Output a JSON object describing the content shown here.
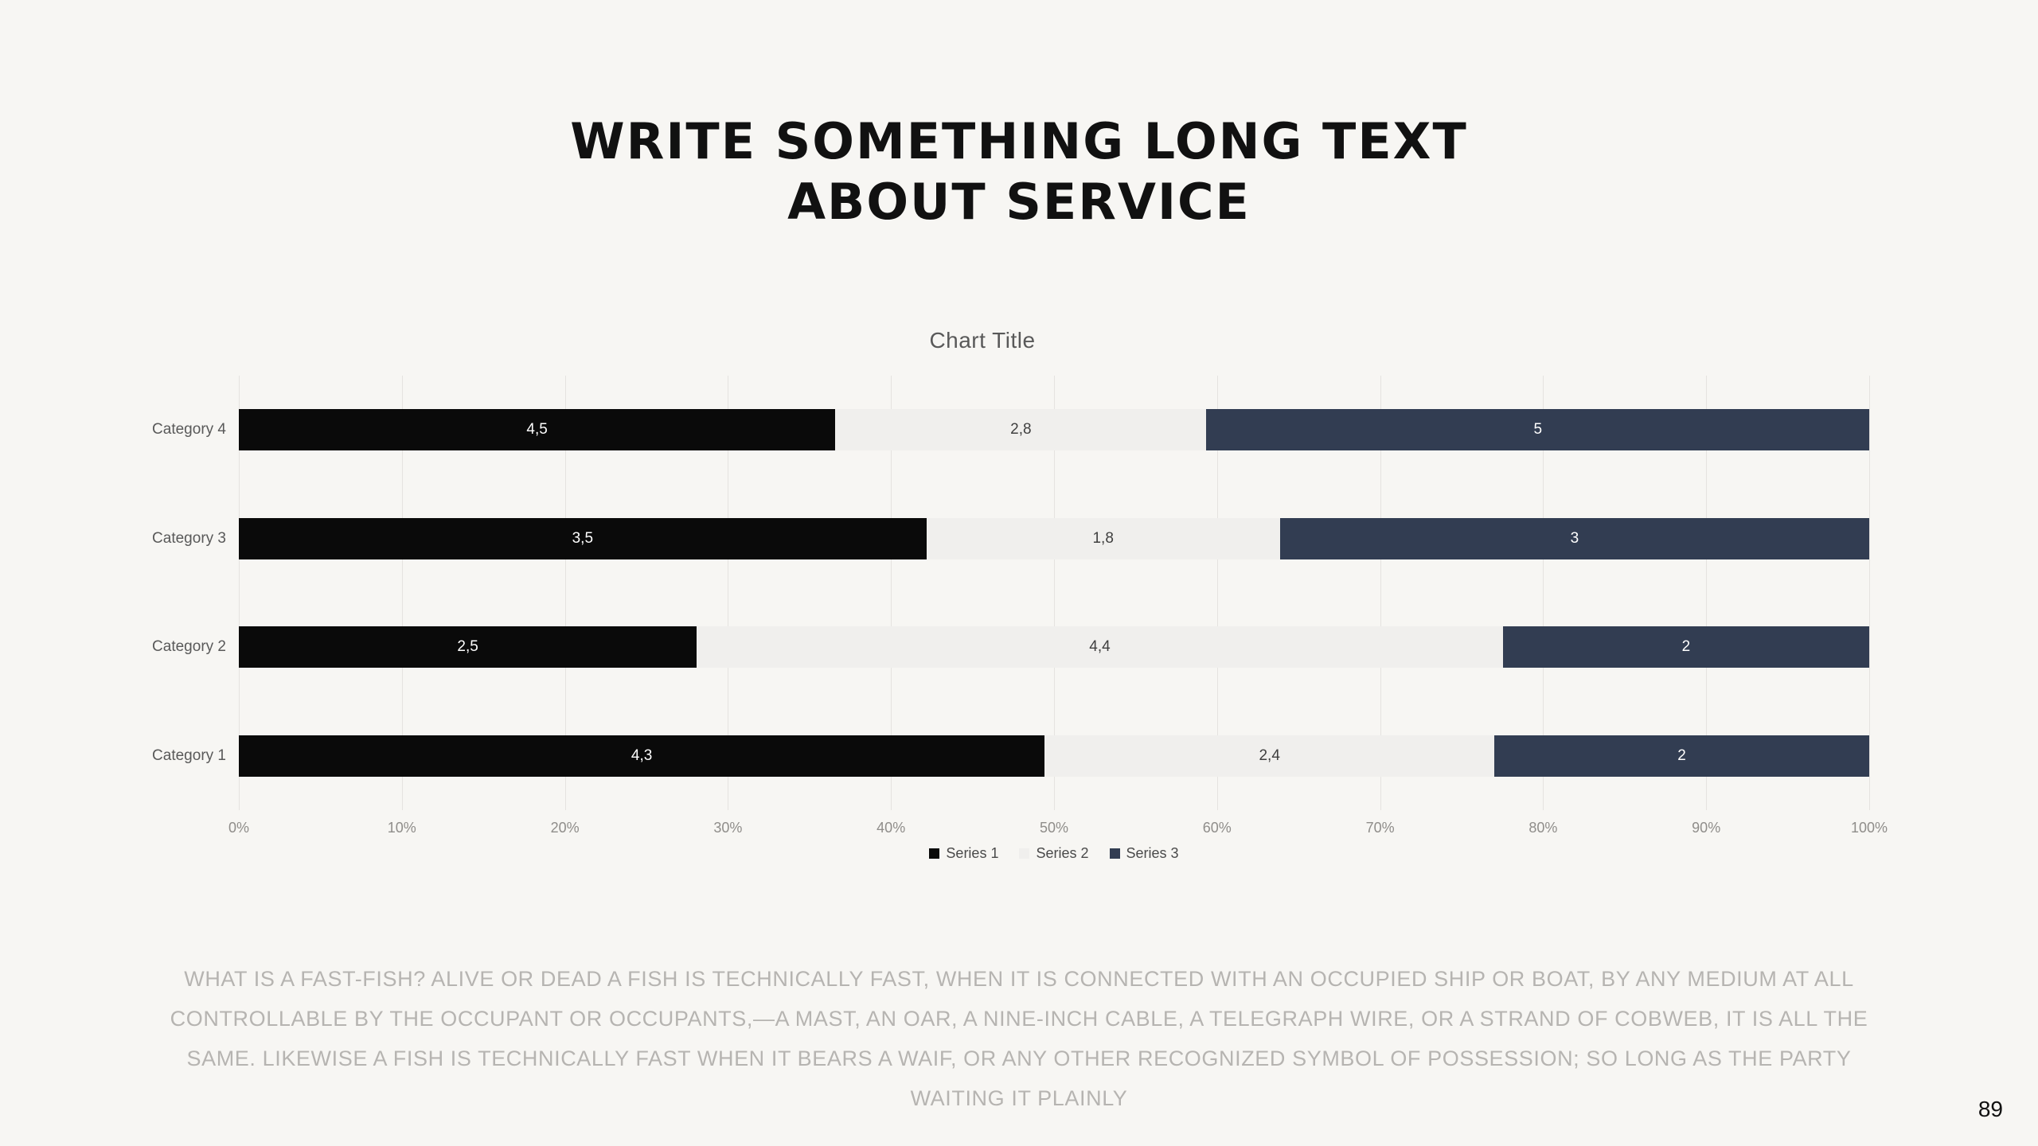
{
  "page": {
    "background": "#f7f6f3",
    "page_number": "89"
  },
  "title": {
    "line1": "WRITE SOMETHING LONG TEXT",
    "line2": "ABOUT SERVICE"
  },
  "body_text": "WHAT IS A FAST-FISH? ALIVE OR DEAD A FISH IS TECHNICALLY FAST, WHEN IT IS CONNECTED WITH AN OCCUPIED SHIP OR BOAT, BY ANY MEDIUM AT ALL CONTROLLABLE BY THE OCCUPANT OR OCCUPANTS,—A MAST, AN OAR, A NINE-INCH CABLE, A TELEGRAPH WIRE, OR A STRAND OF COBWEB, IT IS ALL THE SAME. LIKEWISE A FISH IS TECHNICALLY FAST WHEN IT BEARS A WAIF, OR ANY OTHER RECOGNIZED SYMBOL OF POSSESSION; SO LONG AS THE PARTY WAITING IT PLAINLY",
  "chart_data": {
    "type": "bar",
    "variant": "100%-stacked-horizontal",
    "title": "Chart Title",
    "categories": [
      "Category 4",
      "Category 3",
      "Category 2",
      "Category 1"
    ],
    "series": [
      {
        "name": "Series 1",
        "color": "#0a0a0a",
        "label_color": "#ffffff",
        "values": [
          4.5,
          3.5,
          2.5,
          4.3
        ],
        "labels": [
          "4,5",
          "3,5",
          "2,5",
          "4,3"
        ]
      },
      {
        "name": "Series 2",
        "color": "#f0efed",
        "label_color": "#3f3f3f",
        "values": [
          2.8,
          1.8,
          4.4,
          2.4
        ],
        "labels": [
          "2,8",
          "1,8",
          "4,4",
          "2,4"
        ]
      },
      {
        "name": "Series 3",
        "color": "#323d52",
        "label_color": "#ffffff",
        "values": [
          5,
          3,
          2,
          2
        ],
        "labels": [
          "5",
          "3",
          "2",
          "2"
        ]
      }
    ],
    "x_axis": {
      "min": 0,
      "max": 100,
      "ticks": [
        "0%",
        "10%",
        "20%",
        "30%",
        "40%",
        "50%",
        "60%",
        "70%",
        "80%",
        "90%",
        "100%"
      ]
    },
    "grid": true,
    "legend_position": "bottom",
    "grid_color": "#e5e3e0"
  }
}
